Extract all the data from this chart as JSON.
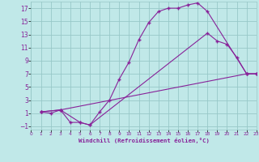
{
  "xlabel": "Windchill (Refroidissement éolien,°C)",
  "bg_color": "#c0e8e8",
  "grid_color": "#98c8c8",
  "line_color": "#882299",
  "xlim": [
    0,
    23
  ],
  "ylim": [
    -1.5,
    18
  ],
  "xticks": [
    0,
    1,
    2,
    3,
    4,
    5,
    6,
    7,
    8,
    9,
    10,
    11,
    12,
    13,
    14,
    15,
    16,
    17,
    18,
    19,
    20,
    21,
    22,
    23
  ],
  "yticks": [
    -1,
    1,
    3,
    5,
    7,
    9,
    11,
    13,
    15,
    17
  ],
  "curve1_x": [
    1,
    2,
    3,
    4,
    5,
    6,
    7,
    8,
    9,
    10,
    11,
    12,
    13,
    14,
    15,
    16,
    17,
    18,
    22,
    23
  ],
  "curve1_y": [
    1.2,
    1.0,
    1.5,
    -0.4,
    -0.4,
    -0.8,
    1.2,
    3.0,
    6.2,
    8.8,
    12.2,
    14.8,
    16.5,
    17.0,
    17.0,
    17.5,
    17.8,
    16.5,
    7.0,
    7.0
  ],
  "curve2_x": [
    1,
    3,
    22,
    23
  ],
  "curve2_y": [
    1.2,
    1.5,
    7.0,
    7.0
  ],
  "curve3_x": [
    1,
    3,
    5,
    6,
    18,
    19,
    20,
    21,
    22,
    23
  ],
  "curve3_y": [
    1.2,
    1.5,
    -0.4,
    -0.8,
    13.2,
    12.0,
    11.5,
    9.5,
    7.0,
    7.0
  ]
}
